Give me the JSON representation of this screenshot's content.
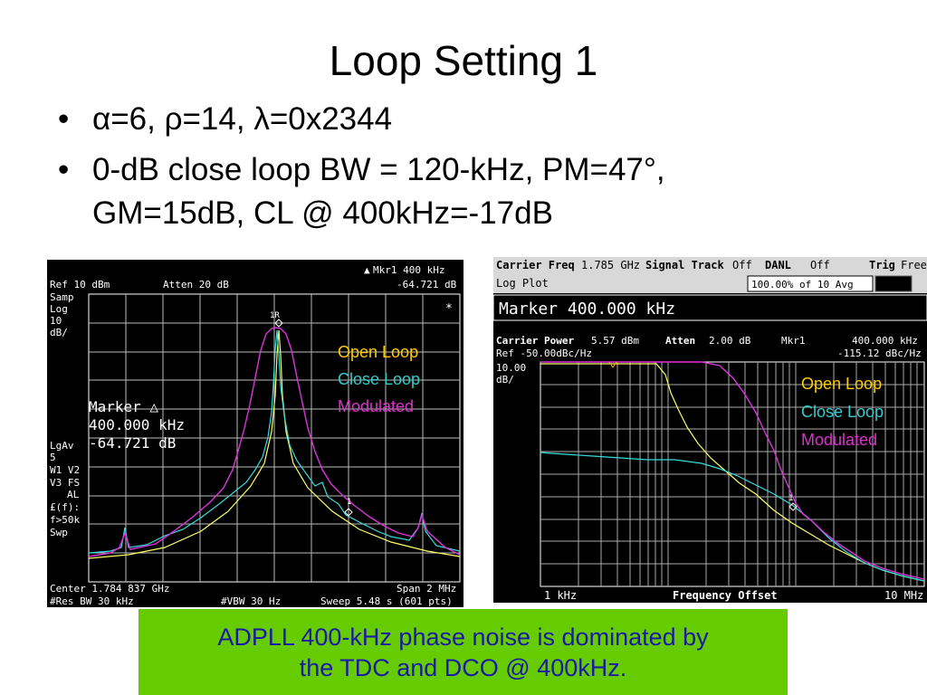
{
  "slide": {
    "title": "Loop Setting 1",
    "bullets": [
      {
        "marker": "•",
        "line1": "α=6, ρ=14, λ=0x2344",
        "line2": ""
      },
      {
        "marker": "•",
        "line1": "0-dB close loop BW = 120-kHz, PM=47°,",
        "line2": "GM=15dB, CL @ 400kHz=-17dB"
      }
    ],
    "caption": {
      "line1": "ADPLL 400-kHz phase noise is dominated by",
      "line2": "the TDC and DCO @ 400kHz."
    }
  },
  "left_analyzer": {
    "mkr_header": "Mkr1  400 kHz",
    "ref": "Ref 10 dBm",
    "atten": "Atten 20 dB",
    "mkr_value": "-64.721 dB",
    "side_labels": [
      "Samp",
      "Log",
      "10",
      "dB/",
      "LgAv",
      "5",
      "W1 V2",
      "V3 FS",
      "AL",
      "£(f):",
      "f>50k",
      "Swp"
    ],
    "marker_box": {
      "label": "Marker △",
      "freq": "400.000 kHz",
      "value": "-64.721 dB"
    },
    "legend": [
      "Open Loop",
      "Close Loop",
      "Modulated"
    ],
    "center": "Center 1.784 837 GHz",
    "span": "Span 2 MHz",
    "res_bw": "#Res BW 30 kHz",
    "vbw": "#VBW 30 Hz",
    "sweep": "Sweep 5.48 s (601 pts)",
    "asterisk": "*",
    "marker_tag": "1",
    "marker_tag_peak": "1R"
  },
  "right_analyzer": {
    "carrier_freq_label": "Carrier Freq",
    "carrier_freq": "1.785 GHz",
    "signal_track_label": "Signal Track",
    "signal_track": "Off",
    "danl_label": "DANL",
    "danl": "Off",
    "trig_label": "Trig",
    "trig": "Free",
    "log_plot": "Log Plot",
    "avg": "100.00% of 10 Avg",
    "marker_bar": "Marker 400.000 kHz",
    "carrier_power_label": "Carrier Power",
    "carrier_power": "5.57 dBm",
    "atten_label": "Atten",
    "atten": "2.00 dB",
    "mkr": "Mkr1",
    "mkr_freq": "400.000 kHz",
    "ref": "Ref -50.00dBc/Hz",
    "mkr_value": "-115.12 dBc/Hz",
    "scale": "10.00",
    "scale_unit": "dB/",
    "legend": [
      "Open Loop",
      "Close Loop",
      "Modulated"
    ],
    "x_start": "1 kHz",
    "x_label": "Frequency Offset",
    "x_end": "10 MHz",
    "marker_tag": "1"
  },
  "colors": {
    "open_loop": "#ffff66",
    "close_loop": "#33dddd",
    "modulated": "#dd33dd",
    "legend_open": "#ffcc00",
    "legend_close": "#33cccc",
    "legend_mod": "#dd33cc"
  }
}
